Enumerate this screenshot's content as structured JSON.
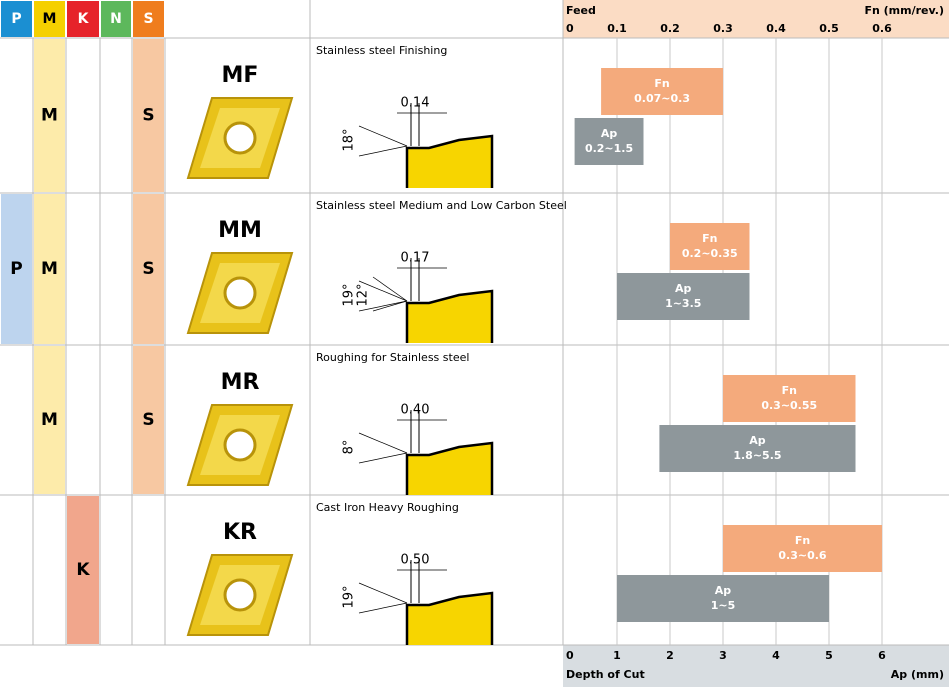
{
  "header": {
    "columns": [
      "P",
      "M",
      "K",
      "N",
      "S"
    ],
    "colors": [
      "#1b8fd2",
      "#f5d000",
      "#e6232a",
      "#5db85c",
      "#ef7d1e"
    ],
    "cell_colors": [
      "#bdd4ee",
      "#fdebaa",
      "#f1a68c",
      "#ffffff",
      "#f7c8a2"
    ],
    "feed_label": "Feed",
    "fn_unit": "Fn (mm/rev.)",
    "fn_ticks": [
      0,
      0.1,
      0.2,
      0.3,
      0.4,
      0.5,
      0.6
    ],
    "ap_ticks": [
      0,
      1,
      2,
      3,
      4,
      5,
      6
    ],
    "depth_label": "Depth of Cut",
    "ap_unit": "Ap (mm)"
  },
  "rows": [
    {
      "materials": [
        "M",
        "S"
      ],
      "name": "MF",
      "description": "Stainless steel Finishing",
      "land": "0.14",
      "angles": [
        "18°"
      ],
      "fn": {
        "label": "Fn",
        "range": "0.07~0.3",
        "min": 0.07,
        "max": 0.3
      },
      "ap": {
        "label": "Ap",
        "range": "0.2~1.5",
        "min": 0.2,
        "max": 1.5
      }
    },
    {
      "materials": [
        "P",
        "M",
        "S"
      ],
      "name": "MM",
      "description": "Stainless steel Medium and Low Carbon Steel",
      "land": "0.17",
      "angles": [
        "19°",
        "12°"
      ],
      "fn": {
        "label": "Fn",
        "range": "0.2~0.35",
        "min": 0.2,
        "max": 0.35
      },
      "ap": {
        "label": "Ap",
        "range": "1~3.5",
        "min": 1,
        "max": 3.5
      }
    },
    {
      "materials": [
        "M",
        "S"
      ],
      "name": "MR",
      "description": "Roughing for Stainless steel",
      "land": "0.40",
      "angles": [
        "8°"
      ],
      "fn": {
        "label": "Fn",
        "range": "0.3~0.55",
        "min": 0.3,
        "max": 0.55
      },
      "ap": {
        "label": "Ap",
        "range": "1.8~5.5",
        "min": 1.8,
        "max": 5.5
      }
    },
    {
      "materials": [
        "K"
      ],
      "name": "KR",
      "description": "Cast Iron Heavy Roughing",
      "land": "0.50",
      "angles": [
        "19°"
      ],
      "fn": {
        "label": "Fn",
        "range": "0.3~0.6",
        "min": 0.3,
        "max": 0.6
      },
      "ap": {
        "label": "Ap",
        "range": "1~5",
        "min": 1,
        "max": 5
      }
    }
  ]
}
